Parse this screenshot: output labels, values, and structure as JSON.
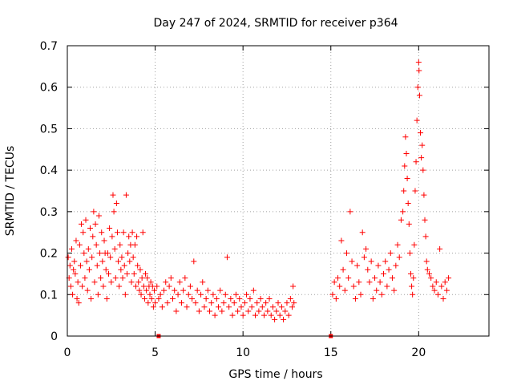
{
  "chart_data": {
    "type": "scatter",
    "title": "Day 247 of 2024, SRMTID for receiver p364",
    "xlabel": "GPS time / hours",
    "ylabel": "SRMTID / TECUs",
    "xlim": [
      0,
      24
    ],
    "ylim": [
      0,
      0.7
    ],
    "x_ticks": [
      0,
      5,
      10,
      15,
      20
    ],
    "y_ticks": [
      0,
      0.1,
      0.2,
      0.3,
      0.4,
      0.5,
      0.6,
      0.7
    ],
    "x_tick_labels": [
      "0",
      "5",
      "10",
      "15",
      "20"
    ],
    "y_tick_labels": [
      "0",
      "0.1",
      "0.2",
      "0.3",
      "0.4",
      "0.5",
      "0.6",
      "0.7"
    ],
    "grid": true,
    "marker": "+",
    "color": "#ff0000",
    "series": [
      {
        "name": "SRMTID",
        "points": [
          [
            0.05,
            0.19
          ],
          [
            0.1,
            0.14
          ],
          [
            0.15,
            0.17
          ],
          [
            0.2,
            0.12
          ],
          [
            0.25,
            0.21
          ],
          [
            0.3,
            0.1
          ],
          [
            0.35,
            0.16
          ],
          [
            0.4,
            0.18
          ],
          [
            0.45,
            0.15
          ],
          [
            0.5,
            0.23
          ],
          [
            0.55,
            0.09
          ],
          [
            0.6,
            0.13
          ],
          [
            0.65,
            0.08
          ],
          [
            0.7,
            0.22
          ],
          [
            0.75,
            0.17
          ],
          [
            0.8,
            0.27
          ],
          [
            0.85,
            0.12
          ],
          [
            0.9,
            0.25
          ],
          [
            0.95,
            0.2
          ],
          [
            1.0,
            0.14
          ],
          [
            1.05,
            0.28
          ],
          [
            1.1,
            0.18
          ],
          [
            1.15,
            0.11
          ],
          [
            1.2,
            0.21
          ],
          [
            1.25,
            0.16
          ],
          [
            1.3,
            0.26
          ],
          [
            1.35,
            0.09
          ],
          [
            1.4,
            0.19
          ],
          [
            1.45,
            0.24
          ],
          [
            1.5,
            0.3
          ],
          [
            1.55,
            0.13
          ],
          [
            1.6,
            0.27
          ],
          [
            1.65,
            0.22
          ],
          [
            1.7,
            0.17
          ],
          [
            1.75,
            0.1
          ],
          [
            1.8,
            0.29
          ],
          [
            1.85,
            0.2
          ],
          [
            1.9,
            0.14
          ],
          [
            1.95,
            0.25
          ],
          [
            2.0,
            0.18
          ],
          [
            2.05,
            0.12
          ],
          [
            2.1,
            0.23
          ],
          [
            2.15,
            0.2
          ],
          [
            2.2,
            0.16
          ],
          [
            2.25,
            0.09
          ],
          [
            2.3,
            0.2
          ],
          [
            2.35,
            0.15
          ],
          [
            2.4,
            0.26
          ],
          [
            2.45,
            0.19
          ],
          [
            2.5,
            0.13
          ],
          [
            2.55,
            0.24
          ],
          [
            2.6,
            0.34
          ],
          [
            2.65,
            0.3
          ],
          [
            2.7,
            0.21
          ],
          [
            2.75,
            0.14
          ],
          [
            2.8,
            0.32
          ],
          [
            2.85,
            0.25
          ],
          [
            2.9,
            0.18
          ],
          [
            2.95,
            0.12
          ],
          [
            3.0,
            0.22
          ],
          [
            3.05,
            0.16
          ],
          [
            3.1,
            0.19
          ],
          [
            3.15,
            0.14
          ],
          [
            3.2,
            0.25
          ],
          [
            3.25,
            0.17
          ],
          [
            3.3,
            0.1
          ],
          [
            3.35,
            0.34
          ],
          [
            3.4,
            0.15
          ],
          [
            3.45,
            0.2
          ],
          [
            3.5,
            0.24
          ],
          [
            3.55,
            0.18
          ],
          [
            3.6,
            0.22
          ],
          [
            3.65,
            0.13
          ],
          [
            3.7,
            0.25
          ],
          [
            3.75,
            0.19
          ],
          [
            3.8,
            0.15
          ],
          [
            3.85,
            0.22
          ],
          [
            3.9,
            0.12
          ],
          [
            3.95,
            0.24
          ],
          [
            4.0,
            0.17
          ],
          [
            4.05,
            0.13
          ],
          [
            4.1,
            0.11
          ],
          [
            4.15,
            0.16
          ],
          [
            4.2,
            0.1
          ],
          [
            4.25,
            0.14
          ],
          [
            4.3,
            0.25
          ],
          [
            4.35,
            0.12
          ],
          [
            4.4,
            0.09
          ],
          [
            4.45,
            0.15
          ],
          [
            4.5,
            0.11
          ],
          [
            4.55,
            0.14
          ],
          [
            4.6,
            0.08
          ],
          [
            4.65,
            0.12
          ],
          [
            4.7,
            0.1
          ],
          [
            4.75,
            0.13
          ],
          [
            4.8,
            0.09
          ],
          [
            4.85,
            0.12
          ],
          [
            4.9,
            0.07
          ],
          [
            4.95,
            0.11
          ],
          [
            5.0,
            0.08
          ],
          [
            5.1,
            0.12
          ],
          [
            5.2,
            0.09
          ],
          [
            5.3,
            0.1
          ],
          [
            5.4,
            0.07
          ],
          [
            5.5,
            0.11
          ],
          [
            5.6,
            0.13
          ],
          [
            5.7,
            0.08
          ],
          [
            5.8,
            0.12
          ],
          [
            5.9,
            0.14
          ],
          [
            6.0,
            0.09
          ],
          [
            6.1,
            0.11
          ],
          [
            6.2,
            0.06
          ],
          [
            6.3,
            0.1
          ],
          [
            6.4,
            0.13
          ],
          [
            6.5,
            0.08
          ],
          [
            6.6,
            0.11
          ],
          [
            6.7,
            0.14
          ],
          [
            6.8,
            0.07
          ],
          [
            6.9,
            0.1
          ],
          [
            7.0,
            0.12
          ],
          [
            7.1,
            0.09
          ],
          [
            7.2,
            0.18
          ],
          [
            7.3,
            0.08
          ],
          [
            7.4,
            0.11
          ],
          [
            7.5,
            0.06
          ],
          [
            7.6,
            0.1
          ],
          [
            7.7,
            0.13
          ],
          [
            7.8,
            0.07
          ],
          [
            7.9,
            0.09
          ],
          [
            8.0,
            0.11
          ],
          [
            8.1,
            0.06
          ],
          [
            8.2,
            0.08
          ],
          [
            8.3,
            0.1
          ],
          [
            8.4,
            0.05
          ],
          [
            8.5,
            0.09
          ],
          [
            8.6,
            0.07
          ],
          [
            8.7,
            0.11
          ],
          [
            8.8,
            0.06
          ],
          [
            8.9,
            0.08
          ],
          [
            9.0,
            0.1
          ],
          [
            9.1,
            0.19
          ],
          [
            9.2,
            0.07
          ],
          [
            9.3,
            0.09
          ],
          [
            9.4,
            0.05
          ],
          [
            9.5,
            0.08
          ],
          [
            9.6,
            0.1
          ],
          [
            9.7,
            0.06
          ],
          [
            9.8,
            0.09
          ],
          [
            9.9,
            0.07
          ],
          [
            10.0,
            0.05
          ],
          [
            10.1,
            0.08
          ],
          [
            10.2,
            0.1
          ],
          [
            10.3,
            0.06
          ],
          [
            10.4,
            0.09
          ],
          [
            10.5,
            0.07
          ],
          [
            10.6,
            0.11
          ],
          [
            10.7,
            0.05
          ],
          [
            10.8,
            0.08
          ],
          [
            10.9,
            0.06
          ],
          [
            11.0,
            0.09
          ],
          [
            11.1,
            0.07
          ],
          [
            11.2,
            0.05
          ],
          [
            11.3,
            0.08
          ],
          [
            11.4,
            0.06
          ],
          [
            11.5,
            0.09
          ],
          [
            11.6,
            0.05
          ],
          [
            11.7,
            0.07
          ],
          [
            11.8,
            0.04
          ],
          [
            11.9,
            0.06
          ],
          [
            12.0,
            0.08
          ],
          [
            12.1,
            0.05
          ],
          [
            12.2,
            0.07
          ],
          [
            12.3,
            0.04
          ],
          [
            12.4,
            0.06
          ],
          [
            12.5,
            0.08
          ],
          [
            12.6,
            0.05
          ],
          [
            12.7,
            0.09
          ],
          [
            12.8,
            0.07
          ],
          [
            12.85,
            0.12
          ],
          [
            12.9,
            0.08
          ],
          [
            15.1,
            0.1
          ],
          [
            15.2,
            0.13
          ],
          [
            15.3,
            0.09
          ],
          [
            15.4,
            0.14
          ],
          [
            15.5,
            0.12
          ],
          [
            15.6,
            0.23
          ],
          [
            15.7,
            0.16
          ],
          [
            15.8,
            0.11
          ],
          [
            15.9,
            0.2
          ],
          [
            16.0,
            0.14
          ],
          [
            16.1,
            0.3
          ],
          [
            16.2,
            0.18
          ],
          [
            16.3,
            0.12
          ],
          [
            16.4,
            0.09
          ],
          [
            16.5,
            0.17
          ],
          [
            16.6,
            0.13
          ],
          [
            16.7,
            0.1
          ],
          [
            16.8,
            0.25
          ],
          [
            16.9,
            0.19
          ],
          [
            17.0,
            0.21
          ],
          [
            17.1,
            0.16
          ],
          [
            17.2,
            0.13
          ],
          [
            17.3,
            0.18
          ],
          [
            17.4,
            0.09
          ],
          [
            17.5,
            0.14
          ],
          [
            17.6,
            0.11
          ],
          [
            17.7,
            0.17
          ],
          [
            17.8,
            0.13
          ],
          [
            17.9,
            0.1
          ],
          [
            18.0,
            0.15
          ],
          [
            18.1,
            0.18
          ],
          [
            18.2,
            0.12
          ],
          [
            18.3,
            0.16
          ],
          [
            18.4,
            0.2
          ],
          [
            18.5,
            0.14
          ],
          [
            18.6,
            0.11
          ],
          [
            18.7,
            0.17
          ],
          [
            18.8,
            0.22
          ],
          [
            18.9,
            0.19
          ],
          [
            19.0,
            0.28
          ],
          [
            19.1,
            0.3
          ],
          [
            19.15,
            0.35
          ],
          [
            19.2,
            0.41
          ],
          [
            19.25,
            0.48
          ],
          [
            19.3,
            0.44
          ],
          [
            19.35,
            0.38
          ],
          [
            19.4,
            0.32
          ],
          [
            19.45,
            0.27
          ],
          [
            19.5,
            0.2
          ],
          [
            19.55,
            0.15
          ],
          [
            19.6,
            0.12
          ],
          [
            19.65,
            0.1
          ],
          [
            19.7,
            0.14
          ],
          [
            19.75,
            0.22
          ],
          [
            19.8,
            0.35
          ],
          [
            19.85,
            0.42
          ],
          [
            19.9,
            0.52
          ],
          [
            19.95,
            0.6
          ],
          [
            20.0,
            0.66
          ],
          [
            20.02,
            0.64
          ],
          [
            20.05,
            0.58
          ],
          [
            20.1,
            0.49
          ],
          [
            20.15,
            0.43
          ],
          [
            20.2,
            0.46
          ],
          [
            20.25,
            0.4
          ],
          [
            20.3,
            0.34
          ],
          [
            20.35,
            0.28
          ],
          [
            20.4,
            0.24
          ],
          [
            20.45,
            0.18
          ],
          [
            20.5,
            0.16
          ],
          [
            20.6,
            0.15
          ],
          [
            20.7,
            0.14
          ],
          [
            20.8,
            0.12
          ],
          [
            20.9,
            0.11
          ],
          [
            21.0,
            0.13
          ],
          [
            21.1,
            0.1
          ],
          [
            21.2,
            0.21
          ],
          [
            21.3,
            0.12
          ],
          [
            21.4,
            0.09
          ],
          [
            21.5,
            0.13
          ],
          [
            21.6,
            0.11
          ],
          [
            21.7,
            0.14
          ]
        ]
      }
    ],
    "zero_markers": [
      5.2,
      15.0
    ]
  }
}
